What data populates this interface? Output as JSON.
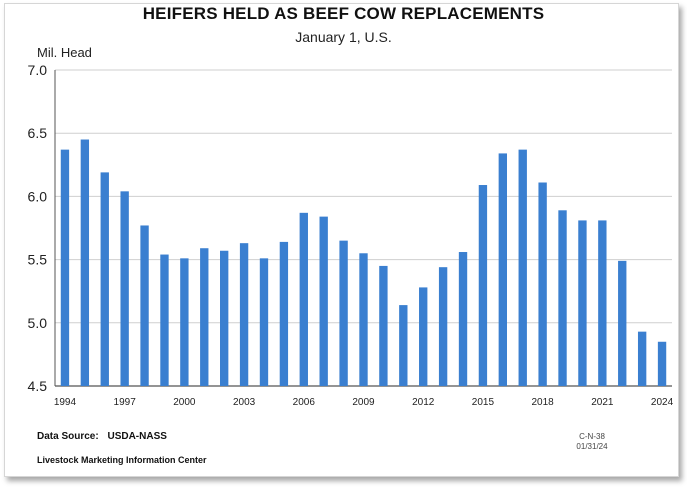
{
  "chart_data": {
    "type": "bar",
    "title": "HEIFERS HELD AS BEEF COW REPLACEMENTS",
    "subtitle": "January 1, U.S.",
    "ylabel": "Mil. Head",
    "xlabel": "",
    "ylim": [
      4.5,
      7.0
    ],
    "yticks": [
      "7.0",
      "6.5",
      "6.0",
      "5.5",
      "5.0",
      "4.5"
    ],
    "grid": true,
    "bar_color": "#3a7fd0",
    "categories": [
      "1994",
      "1995",
      "1996",
      "1997",
      "1998",
      "1999",
      "2000",
      "2001",
      "2002",
      "2003",
      "2004",
      "2005",
      "2006",
      "2007",
      "2008",
      "2009",
      "2010",
      "2011",
      "2012",
      "2013",
      "2014",
      "2015",
      "2016",
      "2017",
      "2018",
      "2019",
      "2020",
      "2021",
      "2022",
      "2023",
      "2024"
    ],
    "xtick_labels": [
      "1994",
      "1997",
      "2000",
      "2003",
      "2006",
      "2009",
      "2012",
      "2015",
      "2018",
      "2021",
      "2024"
    ],
    "values": [
      6.37,
      6.45,
      6.19,
      6.04,
      5.77,
      5.54,
      5.51,
      5.59,
      5.57,
      5.63,
      5.51,
      5.64,
      5.87,
      5.84,
      5.65,
      5.55,
      5.45,
      5.14,
      5.28,
      5.44,
      5.56,
      6.09,
      6.34,
      6.37,
      6.11,
      5.89,
      5.81,
      5.81,
      5.49,
      4.93,
      4.85
    ]
  },
  "footer": {
    "source_label": "Data Source:",
    "source_value": "USDA-NASS",
    "center": "Livestock Marketing Information Center",
    "code_line1": "C-N-38",
    "code_line2": "01/31/24"
  }
}
